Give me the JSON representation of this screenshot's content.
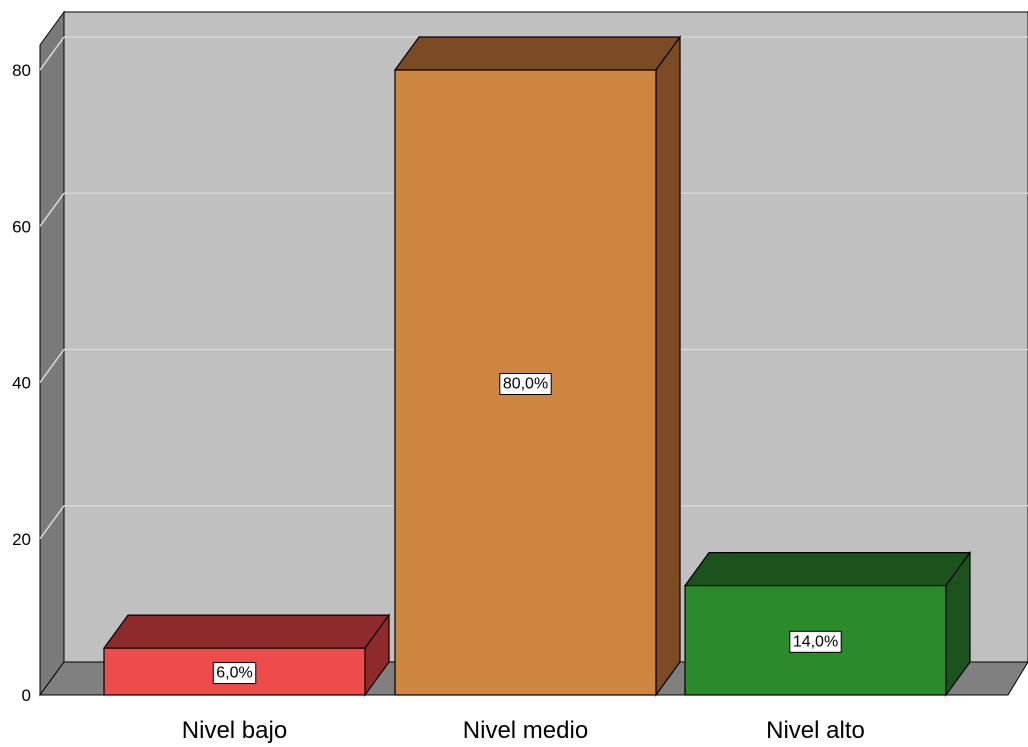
{
  "chart_data": {
    "type": "bar",
    "style": "3d",
    "categories": [
      "Nivel bajo",
      "Nivel medio",
      "Nivel alto"
    ],
    "values": [
      6,
      80,
      14
    ],
    "data_labels": [
      "6,0%",
      "80,0%",
      "14,0%"
    ],
    "title": "",
    "xlabel": "",
    "ylabel": "",
    "ylim": [
      0,
      80
    ],
    "yticks": [
      "0",
      "20",
      "40",
      "60",
      "80"
    ],
    "grid": true,
    "legend": "none",
    "colors": {
      "bar_front": [
        "#ee4b4b",
        "#cd853f",
        "#2b8a2b"
      ],
      "bar_top": [
        "#8f2a2a",
        "#7b4c24",
        "#1c531c"
      ],
      "bar_side": [
        "#8f2a2a",
        "#7b4c24",
        "#1c531c"
      ],
      "plot_back": "#c0c0c0",
      "left_wall": "#7a7a7a",
      "floor": "#808080",
      "gridline": "#d6d6d6"
    }
  }
}
